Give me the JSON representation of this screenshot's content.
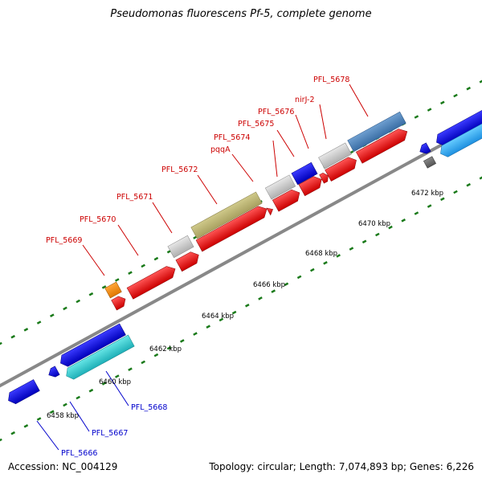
{
  "title": "Pseudomonas fluorescens Pf-5, complete genome",
  "footer": {
    "accession": "Accession: NC_004129",
    "summary": "Topology: circular; Length: 7,074,893 bp; Genes: 6,226"
  },
  "colors": {
    "forward_label": "#cc0000",
    "reverse_label": "#0000cc",
    "backbone": "#888888",
    "dots": "#1a7a1a"
  },
  "ticks": [
    "6458 kbp",
    "6460 kbp",
    "6462 kbp",
    "6464 kbp",
    "6466 kbp",
    "6468 kbp",
    "6470 kbp",
    "6472 kbp"
  ],
  "forward_gene_labels": [
    "PFL_5669",
    "PFL_5670",
    "PFL_5671",
    "PFL_5672",
    "pqqA",
    "PFL_5674",
    "PFL_5675",
    "PFL_5676",
    "nirJ-2",
    "PFL_5678"
  ],
  "reverse_gene_labels": [
    "PFL_5666",
    "PFL_5667",
    "PFL_5668"
  ]
}
